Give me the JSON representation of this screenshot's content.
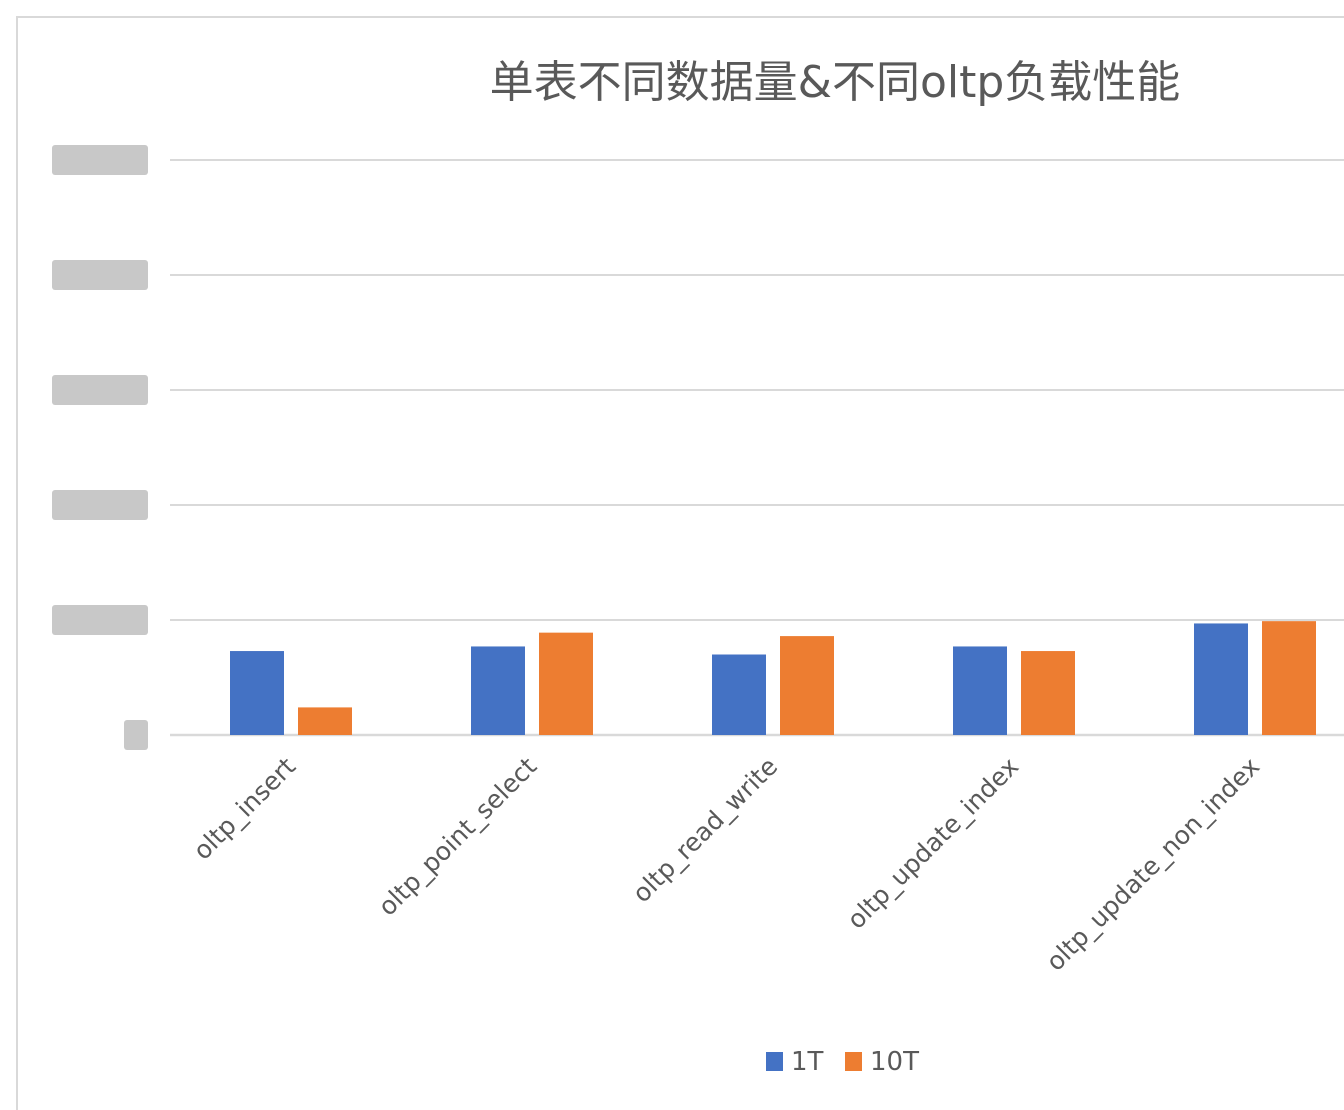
{
  "chart_data": {
    "type": "bar",
    "title": "单表不同数据量&不同oltp负载性能",
    "xlabel": "",
    "ylabel": "",
    "categories": [
      "oltp_insert",
      "oltp_point_select",
      "oltp_read_write",
      "oltp_update_index",
      "oltp_update_non_index"
    ],
    "series": [
      {
        "name": "1T",
        "color": "#4472C4",
        "values": [
          0.73,
          0.77,
          0.7,
          0.77,
          0.97
        ]
      },
      {
        "name": "10T",
        "color": "#ED7D31",
        "values": [
          0.24,
          0.89,
          0.86,
          0.73,
          0.99
        ]
      }
    ],
    "ylim": [
      0,
      5
    ],
    "y_ticks_obscured": true,
    "grid": true,
    "legend_position": "bottom"
  }
}
